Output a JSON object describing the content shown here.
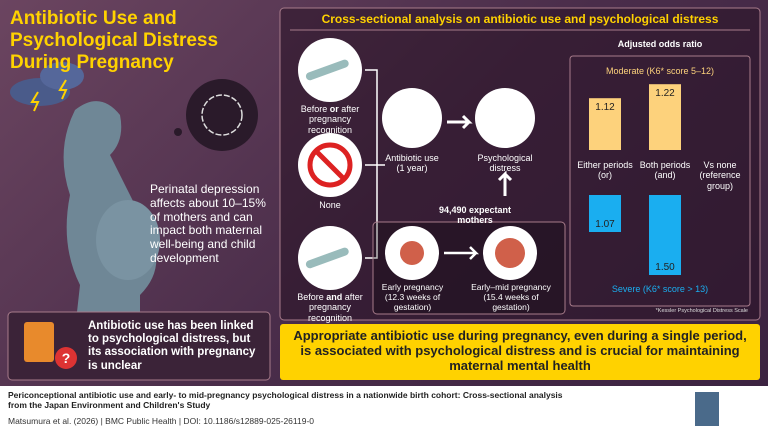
{
  "title": "Antibiotic Use and Psychological Distress During Pregnancy",
  "intro": "Perinatal depression affects about 10–15% of mothers and can impact both maternal well-being and child development",
  "callout": "Antibiotic use has been linked to psychological distress, but its association with pregnancy is unclear",
  "panel_title": "Cross-sectional analysis on antibiotic use and psychological distress",
  "exposures": [
    {
      "parts": [
        "Before ",
        "or",
        " after pregnancy recognition"
      ]
    },
    {
      "parts": [
        "None"
      ]
    },
    {
      "parts": [
        "Before ",
        "and",
        " after pregnancy recognition"
      ]
    }
  ],
  "flow": {
    "exposure": "Antibiotic use (1 year)",
    "outcome": "Psychological distress",
    "population": "94,490 expectant mothers",
    "timepoints": [
      "Early pregnancy (12.3 weeks of gestation)",
      "Early–mid pregnancy (15.4 weeks of gestation)"
    ]
  },
  "chart_data": {
    "type": "bar",
    "title": "Adjusted odds ratio",
    "categories": [
      "Either periods (or)",
      "Both periods (and)",
      "Vs none (reference group)"
    ],
    "series": [
      {
        "name": "Moderate (K6* score 5–12)",
        "color": "#fdd27c",
        "values": [
          1.12,
          1.22,
          null
        ]
      },
      {
        "name": "Severe (K6* score > 13)",
        "color": "#1aaef0",
        "values": [
          1.07,
          1.5,
          null
        ],
        "value_labels": [
          "1.07",
          "1.50",
          null
        ]
      }
    ],
    "note": "*Kessler Psychological Distress Scale"
  },
  "conclusion": "Appropriate antibiotic use during pregnancy, even during a single period, is associated with psychological distress and is crucial for maintaining maternal mental health",
  "footer": {
    "citation": "Periconceptional antibiotic use and early- to mid-pregnancy psychological distress in a nationwide birth cohort: Cross-sectional analysis from the Japan Environment and Children's Study",
    "source": "Matsumura et al. (2026) | BMC Public Health | DOI: 10.1186/s12889-025-26119-0"
  }
}
